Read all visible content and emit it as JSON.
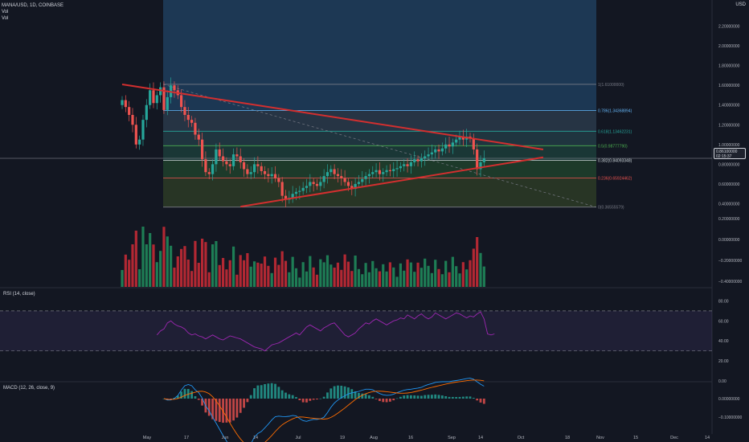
{
  "header": {
    "symbol_line": "MANA/USD, 1D, COINBASE",
    "vol1": "Vol",
    "vol2": "Vol"
  },
  "axis_currency": "USD",
  "last_price": {
    "value": "0.86100000",
    "countdown": "02:15:37"
  },
  "rsi_label": "RSI (14, close)",
  "macd_label": "MACD (12, 26, close, 9)",
  "colors": {
    "background": "#131722",
    "up": "#26a69a",
    "down": "#ef5350",
    "trendline": "#d32f2f",
    "rsi_line": "#9c27b0",
    "macd_line": "#2196f3",
    "signal_line": "#ff6d00"
  },
  "chart_data": [
    {
      "type": "candlestick",
      "title": "MANA/USD, 1D, COINBASE",
      "x_tick_labels": [
        "May",
        "17",
        "Jun",
        "14",
        "Jul",
        "19",
        "Aug",
        "16",
        "Sep",
        "14",
        "Oct",
        "18",
        "Nov",
        "15",
        "Dec",
        "14"
      ],
      "y_tick_labels": [
        "2.20000000",
        "2.00000000",
        "1.80000000",
        "1.60000000",
        "1.40000000",
        "1.20000000",
        "1.00000000",
        "0.80000000",
        "0.60000000",
        "0.40000000"
      ],
      "ylim": [
        0.2,
        2.4
      ],
      "fib_levels": [
        {
          "label": "1(1.61000000)",
          "value": 1.61,
          "color": "#787b86"
        },
        {
          "label": "0.786(1.34368894)",
          "value": 1.34368894,
          "color": "#64b5f6"
        },
        {
          "label": "0.618(1.13462231)",
          "value": 1.13462231,
          "color": "#26a69a"
        },
        {
          "label": "0.5(0.98777790)",
          "value": 0.9877779,
          "color": "#4caf50"
        },
        {
          "label": "0.382(0.84093348)",
          "value": 0.84093348,
          "color": "#cfd8dc"
        },
        {
          "label": "0.236(0.65924462)",
          "value": 0.65924462,
          "color": "#ef5350"
        },
        {
          "label": "0(0.36555579)",
          "value": 0.36555579,
          "color": "#787b86"
        }
      ],
      "trendlines": [
        {
          "name": "upper",
          "from": [
            0,
            1.61
          ],
          "to": [
            121,
            0.95
          ]
        },
        {
          "name": "lower",
          "from": [
            34,
            0.37
          ],
          "to": [
            121,
            0.87
          ]
        }
      ],
      "ohlc_close": [
        1.45,
        1.38,
        1.3,
        1.2,
        1.0,
        1.05,
        1.25,
        1.4,
        1.55,
        1.42,
        1.5,
        1.58,
        1.35,
        1.48,
        1.6,
        1.55,
        1.5,
        1.38,
        1.3,
        1.25,
        1.22,
        1.1,
        1.05,
        0.85,
        0.72,
        0.7,
        0.8,
        0.95,
        0.88,
        0.83,
        0.8,
        0.78,
        0.9,
        0.88,
        0.82,
        0.75,
        0.7,
        0.72,
        0.8,
        0.78,
        0.73,
        0.7,
        0.68,
        0.7,
        0.66,
        0.62,
        0.48,
        0.44,
        0.46,
        0.5,
        0.52,
        0.53,
        0.56,
        0.58,
        0.62,
        0.6,
        0.58,
        0.62,
        0.68,
        0.72,
        0.75,
        0.7,
        0.68,
        0.66,
        0.62,
        0.58,
        0.55,
        0.6,
        0.62,
        0.65,
        0.68,
        0.7,
        0.72,
        0.74,
        0.7,
        0.72,
        0.74,
        0.73,
        0.75,
        0.76,
        0.78,
        0.8,
        0.78,
        0.82,
        0.85,
        0.83,
        0.86,
        0.88,
        0.9,
        0.92,
        0.95,
        0.93,
        0.96,
        1.0,
        0.98,
        1.02,
        1.05,
        1.08,
        1.05,
        1.08,
        1.06,
        0.95,
        0.75,
        0.82,
        0.86
      ]
    },
    {
      "type": "bar",
      "title": "Vol",
      "y_tick_labels": [
        "0.20000000",
        "0.00000000",
        "−0.20000000",
        "−0.40000000"
      ]
    },
    {
      "type": "line",
      "title": "RSI (14, close)",
      "y_tick_labels": [
        "80.00",
        "60.00",
        "40.00",
        "20.00",
        "0.00"
      ],
      "ylim": [
        0,
        90
      ],
      "bands": [
        30,
        70
      ],
      "values": [
        46,
        50,
        52,
        58,
        60,
        57,
        55,
        54,
        52,
        48,
        46,
        47,
        45,
        44,
        42,
        44,
        46,
        44,
        42,
        41,
        43,
        45,
        44,
        43,
        42,
        40,
        38,
        36,
        34,
        33,
        32,
        30,
        33,
        36,
        37,
        38,
        40,
        42,
        44,
        46,
        48,
        46,
        50,
        54,
        56,
        54,
        52,
        50,
        53,
        55,
        57,
        58,
        54,
        50,
        46,
        44,
        46,
        48,
        52,
        55,
        58,
        57,
        60,
        62,
        60,
        58,
        56,
        58,
        60,
        61,
        63,
        62,
        66,
        64,
        62,
        65,
        67,
        64,
        62,
        64,
        68,
        66,
        64,
        62,
        64,
        66,
        68,
        67,
        65,
        63,
        65,
        64,
        67,
        69,
        62,
        47,
        46,
        47
      ]
    },
    {
      "type": "line",
      "title": "MACD (12, 26, close, 9)",
      "y_tick_labels": [
        "0.00000000",
        "−0.10000000"
      ],
      "ylim": [
        -0.17,
        0.08
      ]
    }
  ]
}
